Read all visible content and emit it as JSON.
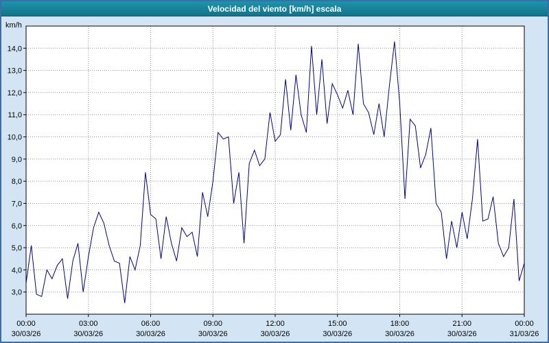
{
  "window": {
    "title": "Velocidad del viento [km/h] escala"
  },
  "chart_data": {
    "type": "line",
    "title": "Velocidad del viento [km/h] escala",
    "ylabel": "km/h",
    "xlabel": "",
    "grid": true,
    "legend": false,
    "line_color": "#000080",
    "plot_bg": "#ffffff",
    "window_bg": "#d3e5f4",
    "titlebar_color": "#11748b",
    "ylim": [
      2,
      15
    ],
    "xlim": [
      0,
      24
    ],
    "y_ticks": [
      3,
      4,
      5,
      6,
      7,
      8,
      9,
      10,
      11,
      12,
      13,
      14
    ],
    "y_tick_labels": [
      "3,0",
      "4,0",
      "5,0",
      "6,0",
      "7,0",
      "8,0",
      "9,0",
      "10,0",
      "11,0",
      "12,0",
      "13,0",
      "14,0"
    ],
    "x_ticks": [
      {
        "hour": 0,
        "time": "00:00",
        "date": "30/03/26"
      },
      {
        "hour": 3,
        "time": "03:00",
        "date": "30/03/26"
      },
      {
        "hour": 6,
        "time": "06:00",
        "date": "30/03/26"
      },
      {
        "hour": 9,
        "time": "09:00",
        "date": "30/03/26"
      },
      {
        "hour": 12,
        "time": "12:00",
        "date": "30/03/26"
      },
      {
        "hour": 15,
        "time": "15:00",
        "date": "30/03/26"
      },
      {
        "hour": 18,
        "time": "18:00",
        "date": "30/03/26"
      },
      {
        "hour": 21,
        "time": "21:00",
        "date": "30/03/26"
      },
      {
        "hour": 24,
        "time": "00:00",
        "date": "31/03/26"
      }
    ],
    "series": [
      {
        "name": "Velocidad del viento",
        "x": [
          0,
          0.25,
          0.5,
          0.75,
          1,
          1.25,
          1.5,
          1.75,
          2,
          2.25,
          2.5,
          2.75,
          3,
          3.25,
          3.5,
          3.75,
          4,
          4.25,
          4.5,
          4.75,
          5,
          5.25,
          5.5,
          5.75,
          6,
          6.25,
          6.5,
          6.75,
          7,
          7.25,
          7.5,
          7.75,
          8,
          8.25,
          8.5,
          8.75,
          9,
          9.25,
          9.5,
          9.75,
          10,
          10.25,
          10.5,
          10.75,
          11,
          11.25,
          11.5,
          11.75,
          12,
          12.25,
          12.5,
          12.75,
          13,
          13.25,
          13.5,
          13.75,
          14,
          14.25,
          14.5,
          14.75,
          15,
          15.25,
          15.5,
          15.75,
          16,
          16.25,
          16.5,
          16.75,
          17,
          17.25,
          17.5,
          17.75,
          18,
          18.25,
          18.5,
          18.75,
          19,
          19.25,
          19.5,
          19.75,
          20,
          20.25,
          20.5,
          20.75,
          21,
          21.25,
          21.5,
          21.75,
          22,
          22.25,
          22.5,
          22.75,
          23,
          23.25,
          23.5,
          23.75,
          24
        ],
        "values": [
          3.4,
          5.1,
          2.9,
          2.8,
          4.0,
          3.6,
          4.2,
          4.5,
          2.7,
          4.4,
          5.2,
          3.0,
          4.6,
          5.9,
          6.6,
          6.1,
          5.1,
          4.4,
          4.3,
          2.5,
          4.6,
          4.0,
          5.1,
          8.4,
          6.5,
          6.3,
          4.5,
          6.4,
          5.2,
          4.4,
          5.9,
          5.5,
          5.7,
          4.6,
          7.5,
          6.4,
          8.0,
          10.2,
          9.9,
          10.0,
          7.0,
          8.4,
          5.2,
          8.8,
          9.4,
          8.7,
          9.0,
          11.1,
          9.8,
          10.1,
          12.6,
          10.3,
          12.8,
          11.0,
          10.2,
          14.1,
          11.0,
          13.5,
          10.6,
          12.4,
          11.9,
          11.3,
          12.1,
          11.0,
          14.2,
          11.5,
          11.1,
          10.1,
          11.5,
          10.0,
          12.3,
          14.3,
          11.5,
          7.2,
          10.8,
          10.5,
          8.6,
          9.2,
          10.4,
          7.0,
          6.6,
          4.5,
          6.2,
          5.0,
          6.6,
          5.4,
          7.2,
          9.9,
          6.2,
          6.3,
          7.3,
          5.2,
          4.6,
          5.0,
          7.2,
          3.5,
          4.3
        ]
      }
    ]
  }
}
